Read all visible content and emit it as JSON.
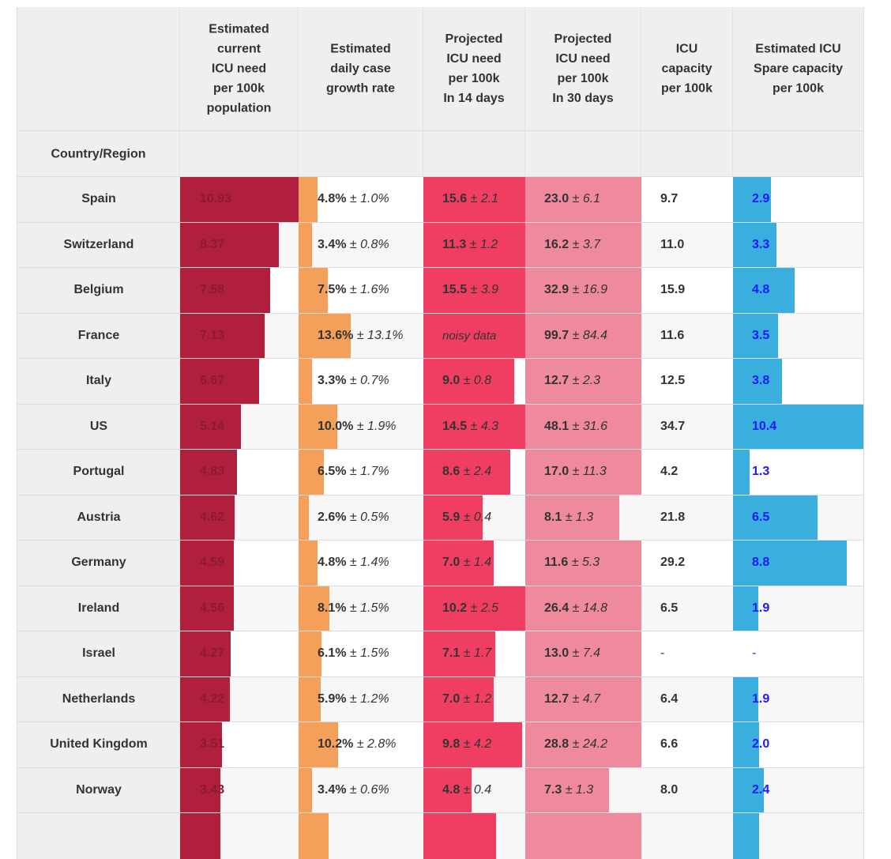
{
  "headers": {
    "current_icu": [
      "Estimated",
      "current",
      "ICU need",
      "per 100k",
      "population"
    ],
    "growth": [
      "Estimated",
      "daily case",
      "growth rate"
    ],
    "proj14": [
      "Projected",
      "ICU need",
      "per 100k",
      "In 14 days"
    ],
    "proj30": [
      "Projected",
      "ICU need",
      "per 100k",
      "In 30 days"
    ],
    "capacity": [
      "ICU",
      "capacity",
      "per 100k"
    ],
    "spare": [
      "Estimated ICU",
      "Spare capacity",
      "per 100k"
    ],
    "country_label": "Country/Region"
  },
  "colors": {
    "icu_bar": "#b0203c",
    "growth_bar": "#f4a05a",
    "proj14_bar": "#f03e62",
    "proj30_bar": "#ee8a9c",
    "spare_bar": "#3aaedc",
    "spare_text": "#1a1aff"
  },
  "rows": [
    {
      "country": "Spain",
      "icu": "10.93",
      "icu_frac": 1.0,
      "growth": "4.8%",
      "growth_err": "± 1.0%",
      "growth_frac": 0.15,
      "p14": "15.6",
      "p14_err": "± 2.1",
      "p14_frac": 1.0,
      "p30": "23.0",
      "p30_err": "± 6.1",
      "p30_frac": 1.0,
      "capacity": "9.7",
      "spare": "2.9",
      "spare_frac": 0.29
    },
    {
      "country": "Switzerland",
      "icu": "8.37",
      "icu_frac": 0.83,
      "growth": "3.4%",
      "growth_err": "± 0.8%",
      "growth_frac": 0.105,
      "p14": "11.3",
      "p14_err": "± 1.2",
      "p14_frac": 1.0,
      "p30": "16.2",
      "p30_err": "± 3.7",
      "p30_frac": 1.0,
      "capacity": "11.0",
      "spare": "3.3",
      "spare_frac": 0.33
    },
    {
      "country": "Belgium",
      "icu": "7.58",
      "icu_frac": 0.76,
      "growth": "7.5%",
      "growth_err": "± 1.6%",
      "growth_frac": 0.235,
      "p14": "15.5",
      "p14_err": "± 3.9",
      "p14_frac": 1.0,
      "p30": "32.9",
      "p30_err": "± 16.9",
      "p30_frac": 1.0,
      "capacity": "15.9",
      "spare": "4.8",
      "spare_frac": 0.47
    },
    {
      "country": "France",
      "icu": "7.13",
      "icu_frac": 0.71,
      "growth": "13.6%",
      "growth_err": "± 13.1%",
      "growth_frac": 0.415,
      "p14_noisy": "noisy data",
      "p14_frac": 1.0,
      "p30": "99.7",
      "p30_err": "± 84.4",
      "p30_frac": 1.0,
      "capacity": "11.6",
      "spare": "3.5",
      "spare_frac": 0.345
    },
    {
      "country": "Italy",
      "icu": "6.67",
      "icu_frac": 0.665,
      "growth": "3.3%",
      "growth_err": "± 0.7%",
      "growth_frac": 0.105,
      "p14": "9.0",
      "p14_err": "± 0.8",
      "p14_frac": 0.89,
      "p30": "12.7",
      "p30_err": "± 2.3",
      "p30_frac": 1.0,
      "capacity": "12.5",
      "spare": "3.8",
      "spare_frac": 0.375
    },
    {
      "country": "US",
      "icu": "5.14",
      "icu_frac": 0.51,
      "growth": "10.0%",
      "growth_err": "± 1.9%",
      "growth_frac": 0.31,
      "p14": "14.5",
      "p14_err": "± 4.3",
      "p14_frac": 1.0,
      "p30": "48.1",
      "p30_err": "± 31.6",
      "p30_frac": 1.0,
      "capacity": "34.7",
      "spare": "10.4",
      "spare_frac": 1.0
    },
    {
      "country": "Portugal",
      "icu": "4.83",
      "icu_frac": 0.48,
      "growth": "6.5%",
      "growth_err": "± 1.7%",
      "growth_frac": 0.2,
      "p14": "8.6",
      "p14_err": "± 2.4",
      "p14_frac": 0.855,
      "p30": "17.0",
      "p30_err": "± 11.3",
      "p30_frac": 1.0,
      "capacity": "4.2",
      "spare": "1.3",
      "spare_frac": 0.125
    },
    {
      "country": "Austria",
      "icu": "4.62",
      "icu_frac": 0.46,
      "growth": "2.6%",
      "growth_err": "± 0.5%",
      "growth_frac": 0.08,
      "p14": "5.9",
      "p14_err": "± 0.4",
      "p14_frac": 0.585,
      "p30": "8.1",
      "p30_err": "± 1.3",
      "p30_frac": 0.81,
      "capacity": "21.8",
      "spare": "6.5",
      "spare_frac": 0.645
    },
    {
      "country": "Germany",
      "icu": "4.59",
      "icu_frac": 0.455,
      "growth": "4.8%",
      "growth_err": "± 1.4%",
      "growth_frac": 0.15,
      "p14": "7.0",
      "p14_err": "± 1.4",
      "p14_frac": 0.69,
      "p30": "11.6",
      "p30_err": "± 5.3",
      "p30_frac": 1.0,
      "capacity": "29.2",
      "spare": "8.8",
      "spare_frac": 0.865
    },
    {
      "country": "Ireland",
      "icu": "4.56",
      "icu_frac": 0.455,
      "growth": "8.1%",
      "growth_err": "± 1.5%",
      "growth_frac": 0.245,
      "p14": "10.2",
      "p14_err": "± 2.5",
      "p14_frac": 1.0,
      "p30": "26.4",
      "p30_err": "± 14.8",
      "p30_frac": 1.0,
      "capacity": "6.5",
      "spare": "1.9",
      "spare_frac": 0.19
    },
    {
      "country": "Israel",
      "icu": "4.27",
      "icu_frac": 0.425,
      "growth": "6.1%",
      "growth_err": "± 1.5%",
      "growth_frac": 0.185,
      "p14": "7.1",
      "p14_err": "± 1.7",
      "p14_frac": 0.705,
      "p30": "13.0",
      "p30_err": "± 7.4",
      "p30_frac": 1.0,
      "capacity": "-",
      "spare": "-",
      "spare_frac": 0
    },
    {
      "country": "Netherlands",
      "icu": "4.22",
      "icu_frac": 0.42,
      "growth": "5.9%",
      "growth_err": "± 1.2%",
      "growth_frac": 0.18,
      "p14": "7.0",
      "p14_err": "± 1.2",
      "p14_frac": 0.69,
      "p30": "12.7",
      "p30_err": "± 4.7",
      "p30_frac": 1.0,
      "capacity": "6.4",
      "spare": "1.9",
      "spare_frac": 0.19
    },
    {
      "country": "United Kingdom",
      "icu": "3.51",
      "icu_frac": 0.35,
      "growth": "10.2%",
      "growth_err": "± 2.8%",
      "growth_frac": 0.315,
      "p14": "9.8",
      "p14_err": "± 4.2",
      "p14_frac": 0.97,
      "p30": "28.8",
      "p30_err": "± 24.2",
      "p30_frac": 1.0,
      "capacity": "6.6",
      "spare": "2.0",
      "spare_frac": 0.2
    },
    {
      "country": "Norway",
      "icu": "3.43",
      "icu_frac": 0.34,
      "growth": "3.4%",
      "growth_err": "± 0.6%",
      "growth_frac": 0.105,
      "p14": "4.8",
      "p14_err": "± 0.4",
      "p14_frac": 0.475,
      "p30": "7.3",
      "p30_err": "± 1.3",
      "p30_frac": 0.72,
      "capacity": "8.0",
      "spare": "2.4",
      "spare_frac": 0.235
    }
  ],
  "partial_row": {
    "icu_frac": 0.34,
    "growth_frac": 0.24,
    "p14_frac": 0.71,
    "p30_frac": 1.0,
    "spare_frac": 0.2
  }
}
